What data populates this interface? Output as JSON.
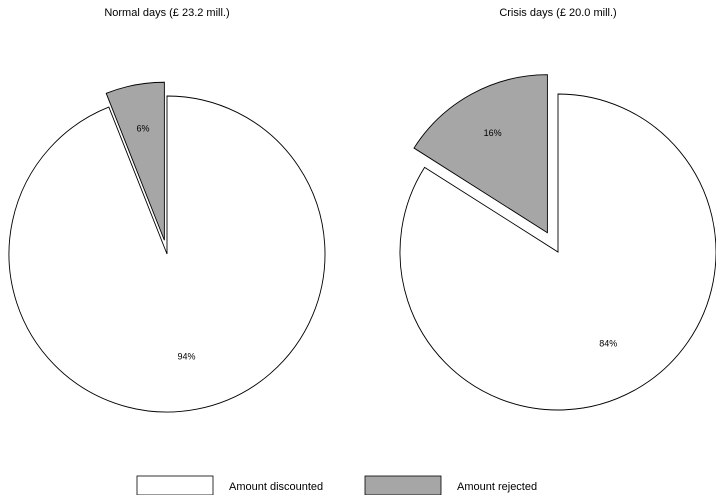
{
  "chart_data": [
    {
      "type": "pie",
      "title": "Normal days (£ 23.2 mill.)",
      "slices": [
        {
          "name": "Amount discounted",
          "value": 94,
          "label": "94%",
          "exploded": false
        },
        {
          "name": "Amount rejected",
          "value": 6,
          "label": "6%",
          "exploded": true
        }
      ]
    },
    {
      "type": "pie",
      "title": "Crisis days (£ 20.0 mill.)",
      "slices": [
        {
          "name": "Amount discounted",
          "value": 84,
          "label": "84%",
          "exploded": false
        },
        {
          "name": "Amount rejected",
          "value": 16,
          "label": "16%",
          "exploded": true
        }
      ]
    }
  ],
  "legend": {
    "position": "bottom",
    "items": [
      {
        "label": "Amount discounted",
        "color": "#ffffff"
      },
      {
        "label": "Amount rejected",
        "color": "#a6a6a6"
      }
    ]
  },
  "colors": {
    "discounted": "#ffffff",
    "rejected": "#a6a6a6",
    "stroke": "#000000"
  }
}
